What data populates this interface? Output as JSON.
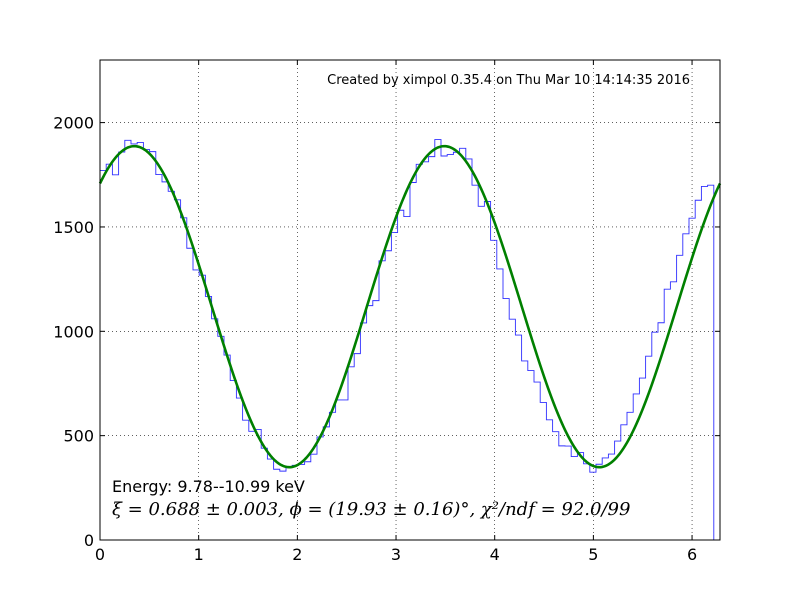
{
  "chart_data": {
    "type": "line",
    "title": "",
    "xlabel": "",
    "ylabel": "",
    "xlim": [
      0,
      6.2832
    ],
    "ylim": [
      0,
      2300
    ],
    "grid": true,
    "x_ticks": [
      "0",
      "1",
      "2",
      "3",
      "4",
      "5",
      "6"
    ],
    "y_ticks": [
      "0",
      "500",
      "1000",
      "1500",
      "2000"
    ],
    "annotations": {
      "credit": "Created by ximpol 0.35.4 on Thu Mar 10 14:14:35 2016",
      "energy": "Energy: 9.78--10.99 keV",
      "fit_result": "ξ = 0.688 ± 0.003, ϕ = (19.93 ± 0.16)°, χ²/ndf = 92.0/99"
    },
    "series": [
      {
        "kind": "histogram",
        "color": "#3030ff",
        "bins": 100,
        "x_range": [
          0,
          6.2832
        ],
        "values": [
          1771,
          1801,
          1750,
          1859,
          1915,
          1898,
          1905,
          1871,
          1861,
          1751,
          1716,
          1671,
          1630,
          1544,
          1398,
          1294,
          1269,
          1167,
          1060,
          976,
          886,
          764,
          680,
          574,
          521,
          530,
          440,
          388,
          339,
          330,
          352,
          358,
          362,
          375,
          411,
          494,
          542,
          612,
          671,
          671,
          830,
          893,
          1040,
          1123,
          1147,
          1338,
          1386,
          1473,
          1580,
          1550,
          1713,
          1800,
          1812,
          1837,
          1919,
          1840,
          1847,
          1858,
          1877,
          1826,
          1700,
          1599,
          1622,
          1436,
          1299,
          1157,
          1058,
          982,
          858,
          812,
          757,
          659,
          576,
          519,
          451,
          450,
          400,
          419,
          365,
          325,
          363,
          393,
          412,
          474,
          552,
          612,
          700,
          776,
          881,
          996,
          1041,
          1202,
          1237,
          1364,
          1467,
          1542,
          1628,
          1694,
          1700,
          0
        ]
      },
      {
        "kind": "fit",
        "color": "#008000",
        "formula": "N * (1 + xi*cos(2*(x - phi)))",
        "params": {
          "N": 1118,
          "xi": 0.688,
          "phi_deg": 19.93
        },
        "x": [
          0,
          0.1571,
          0.3142,
          0.4712,
          0.6283,
          0.7854,
          0.9425,
          1.0996,
          1.2566,
          1.4137,
          1.5708,
          1.7279,
          1.885,
          2.042,
          2.1991,
          2.3562,
          2.5133,
          2.6704,
          2.8274,
          2.9845,
          3.1416,
          3.2987,
          3.4558,
          3.6128,
          3.7699,
          3.927,
          4.0841,
          4.2412,
          4.3982,
          4.5553,
          4.7124,
          4.8695,
          5.0265,
          5.1836,
          5.3407,
          5.4978,
          5.6549,
          5.8119,
          5.969,
          6.1261,
          6.2832
        ],
        "values": [
          1706,
          1840,
          1887,
          1840,
          1706,
          1504,
          1263,
          1017,
          802,
          645,
          560,
          535,
          374,
          402,
          505,
          651,
          857,
          1100,
          1349,
          1570,
          1706,
          1840,
          1887,
          1840,
          1706,
          1504,
          1263,
          1017,
          802,
          645,
          560,
          535,
          374,
          402,
          505,
          651,
          857,
          1100,
          1349,
          1570,
          1706
        ]
      }
    ]
  }
}
